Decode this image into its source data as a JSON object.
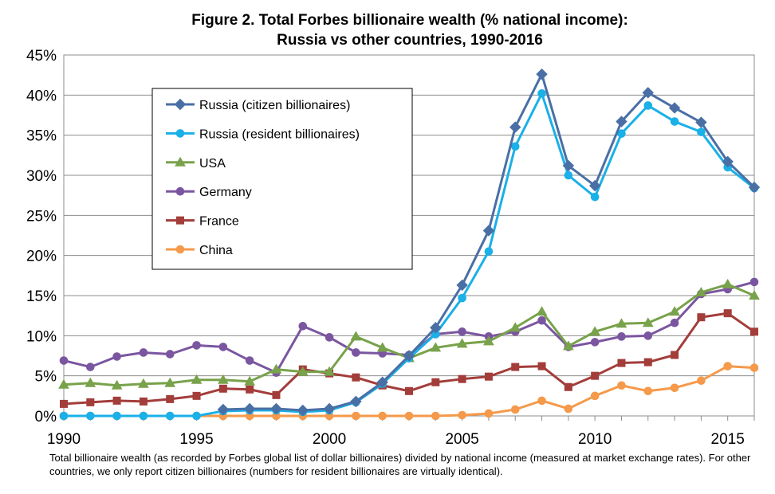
{
  "chart_data": {
    "type": "line",
    "title": "Figure 2. Total Forbes billionaire wealth  (% national income):",
    "subtitle": "Russia vs other countries, 1990-2016",
    "xlabel": "",
    "ylabel": "",
    "xlim": [
      1990,
      2016
    ],
    "ylim": [
      0,
      45
    ],
    "x_ticks": [
      "1990",
      "1995",
      "2000",
      "2005",
      "2010",
      "2015"
    ],
    "y_ticks": [
      "0%",
      "5%",
      "10%",
      "15%",
      "20%",
      "25%",
      "30%",
      "35%",
      "40%",
      "45%"
    ],
    "grid": "horizontal",
    "legend_position": "upper-left",
    "x": [
      1990,
      1991,
      1992,
      1993,
      1994,
      1995,
      1996,
      1997,
      1998,
      1999,
      2000,
      2001,
      2002,
      2003,
      2004,
      2005,
      2006,
      2007,
      2008,
      2009,
      2010,
      2011,
      2012,
      2013,
      2014,
      2015,
      2016
    ],
    "series": [
      {
        "name": "Russia (citizen billionaires)",
        "color": "#4a6fa5",
        "marker": "diamond",
        "values": [
          null,
          null,
          null,
          null,
          null,
          null,
          0.8,
          0.9,
          0.9,
          0.7,
          0.9,
          1.8,
          4.2,
          7.5,
          11.0,
          16.3,
          23.1,
          36.0,
          42.6,
          31.2,
          28.7,
          36.7,
          40.3,
          38.4,
          36.6,
          31.7,
          28.5
        ]
      },
      {
        "name": "Russia (resident billionaires)",
        "color": "#1ab0e8",
        "marker": "circle",
        "values": [
          0.0,
          0.0,
          0.0,
          0.0,
          0.0,
          0.0,
          0.6,
          0.7,
          0.7,
          0.5,
          0.7,
          1.7,
          4.0,
          7.2,
          10.2,
          14.7,
          20.5,
          33.6,
          40.2,
          30.0,
          27.3,
          35.2,
          38.7,
          36.7,
          35.4,
          31.0,
          28.4
        ]
      },
      {
        "name": "USA",
        "color": "#78a24b",
        "marker": "triangle",
        "values": [
          3.9,
          4.1,
          3.8,
          4.0,
          4.1,
          4.5,
          4.5,
          4.3,
          5.8,
          5.5,
          5.5,
          9.9,
          8.5,
          7.2,
          8.5,
          9.0,
          9.3,
          11.0,
          13.0,
          8.7,
          10.5,
          11.5,
          11.6,
          13.0,
          15.4,
          16.4,
          15.0
        ]
      },
      {
        "name": "Germany",
        "color": "#7b56a0",
        "marker": "circle",
        "values": [
          6.9,
          6.1,
          7.4,
          7.9,
          7.7,
          8.8,
          8.6,
          6.9,
          5.4,
          11.2,
          9.8,
          7.9,
          7.8,
          7.6,
          10.2,
          10.5,
          9.9,
          10.5,
          11.9,
          8.6,
          9.2,
          9.9,
          10.0,
          11.6,
          15.2,
          15.8,
          16.7
        ]
      },
      {
        "name": "France",
        "color": "#a33d3a",
        "marker": "square",
        "values": [
          1.5,
          1.7,
          1.9,
          1.8,
          2.1,
          2.5,
          3.4,
          3.3,
          2.6,
          5.8,
          5.3,
          4.8,
          3.8,
          3.1,
          4.2,
          4.6,
          4.9,
          6.1,
          6.2,
          3.6,
          5.0,
          6.6,
          6.7,
          7.6,
          12.3,
          12.8,
          10.5
        ]
      },
      {
        "name": "China",
        "color": "#f5994a",
        "marker": "circle",
        "values": [
          0.0,
          0.0,
          0.0,
          0.0,
          0.0,
          0.0,
          0.0,
          0.0,
          0.0,
          0.0,
          0.0,
          0.0,
          0.0,
          0.0,
          0.0,
          0.1,
          0.3,
          0.8,
          1.9,
          0.9,
          2.5,
          3.8,
          3.1,
          3.5,
          4.4,
          6.2,
          6.0
        ]
      }
    ]
  },
  "caption": "Total billionaire wealth (as recorded by Forbes global list of dollar billionaires) divided by national income (measured at market exchange rates). For other countries, we only report citizen billionaires (numbers for resident billionaires are virtually identical)."
}
